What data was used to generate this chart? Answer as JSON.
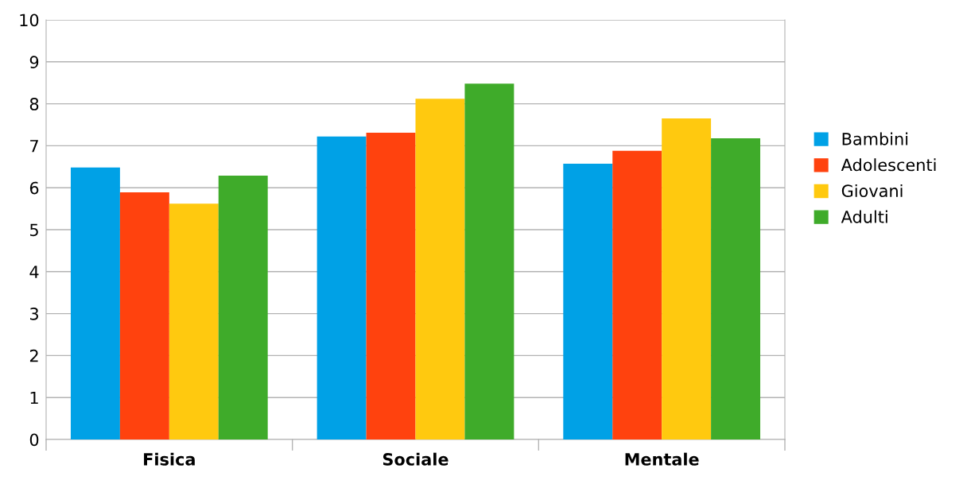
{
  "chart_data": {
    "type": "bar",
    "categories": [
      "Fisica",
      "Sociale",
      "Mentale"
    ],
    "series": [
      {
        "name": "Bambini",
        "color": "#00a1e6",
        "values": [
          6.48,
          7.22,
          6.57
        ]
      },
      {
        "name": "Adolescenti",
        "color": "#ff420e",
        "values": [
          5.89,
          7.31,
          6.88
        ]
      },
      {
        "name": "Giovani",
        "color": "#ffc90f",
        "values": [
          5.62,
          8.12,
          7.65
        ]
      },
      {
        "name": "Adulti",
        "color": "#3fab2a",
        "values": [
          6.29,
          8.48,
          7.18
        ]
      }
    ],
    "ylim": [
      0,
      10
    ],
    "yticks": [
      0,
      1,
      2,
      3,
      4,
      5,
      6,
      7,
      8,
      9,
      10
    ],
    "grid": "y",
    "legend": "right"
  }
}
